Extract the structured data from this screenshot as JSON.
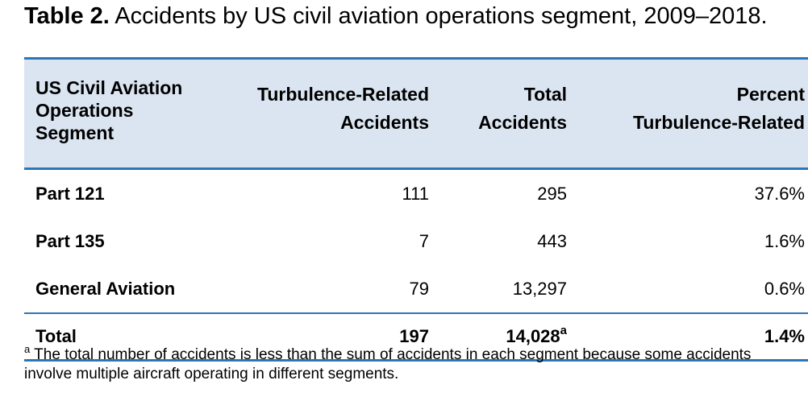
{
  "title": {
    "label": "Table 2.",
    "text": "Accidents by US civil aviation operations segment, 2009–2018."
  },
  "table": {
    "headers": {
      "segment": [
        "US Civil Aviation",
        "Operations",
        "Segment"
      ],
      "turbulence": [
        "Turbulence-Related",
        "Accidents"
      ],
      "total": [
        "Total",
        "Accidents"
      ],
      "percent": [
        "Percent",
        "Turbulence-Related"
      ]
    },
    "rows": [
      {
        "segment": "Part 121",
        "turbulence": "111",
        "total": "295",
        "percent": "37.6%"
      },
      {
        "segment": "Part 135",
        "turbulence": "7",
        "total": "443",
        "percent": "1.6%"
      },
      {
        "segment": "General Aviation",
        "turbulence": "79",
        "total": "13,297",
        "percent": "0.6%"
      }
    ],
    "total_row": {
      "segment": "Total",
      "turbulence": "197",
      "total": "14,028",
      "total_mark": "a",
      "percent": "1.4%"
    }
  },
  "footnote": {
    "mark": "a",
    "text": "The total number of accidents is less than the sum of accidents in each segment because some accidents involve multiple aircraft operating in different segments."
  }
}
